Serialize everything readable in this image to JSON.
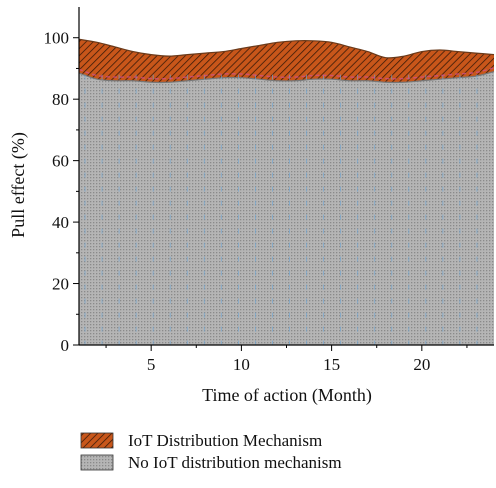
{
  "chart_data": {
    "type": "area",
    "title": "",
    "xlabel": "Time of action (Month)",
    "ylabel": "Pull effect (%)",
    "xlim": [
      1,
      24
    ],
    "ylim": [
      0,
      110
    ],
    "xticks": [
      5,
      10,
      15,
      20
    ],
    "yticks": [
      0,
      20,
      40,
      60,
      80,
      100
    ],
    "grid": false,
    "legend_position": "bottom",
    "x": [
      1,
      2,
      3,
      4,
      5,
      6,
      7,
      8,
      9,
      10,
      11,
      12,
      13,
      14,
      15,
      16,
      17,
      18,
      19,
      20,
      21,
      22,
      23,
      24
    ],
    "series": [
      {
        "name": "IoT Distribution Mechanism",
        "color": "#c8561a",
        "pattern": "diagonal-hatch",
        "values": [
          99.5,
          98.5,
          97,
          95.5,
          94.5,
          94,
          94.5,
          95,
          95.5,
          96.5,
          97.5,
          98.5,
          99,
          99,
          98.5,
          97,
          95.5,
          93.5,
          94,
          95.5,
          96,
          95.5,
          95,
          94.5
        ]
      },
      {
        "name": "No IoT distribution mechanism",
        "color": "#a9a9a9",
        "pattern": "dots",
        "values": [
          88.5,
          86.5,
          86,
          86,
          85.5,
          85.5,
          86,
          86.5,
          87,
          87,
          86.5,
          86,
          86,
          86.5,
          86.5,
          86,
          86,
          85.5,
          85.5,
          86,
          86.5,
          87,
          87.5,
          89
        ]
      }
    ]
  }
}
